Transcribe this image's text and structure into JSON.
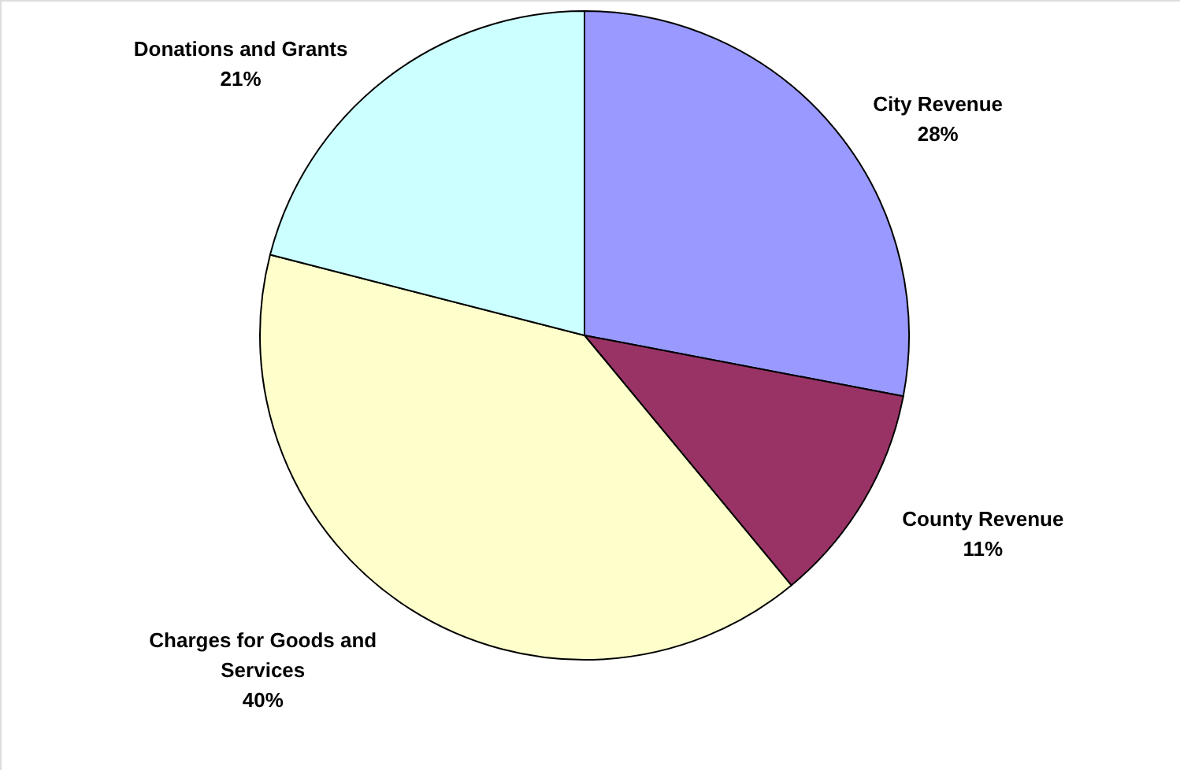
{
  "chart_data": {
    "type": "pie",
    "categories": [
      "City Revenue",
      "County Revenue",
      "Charges for Goods and Services",
      "Donations and Grants"
    ],
    "values": [
      28,
      11,
      40,
      21
    ],
    "colors": [
      "#9999ff",
      "#993366",
      "#ffffcc",
      "#ccffff"
    ],
    "value_labels": [
      "28%",
      "11%",
      "40%",
      "21%"
    ]
  }
}
